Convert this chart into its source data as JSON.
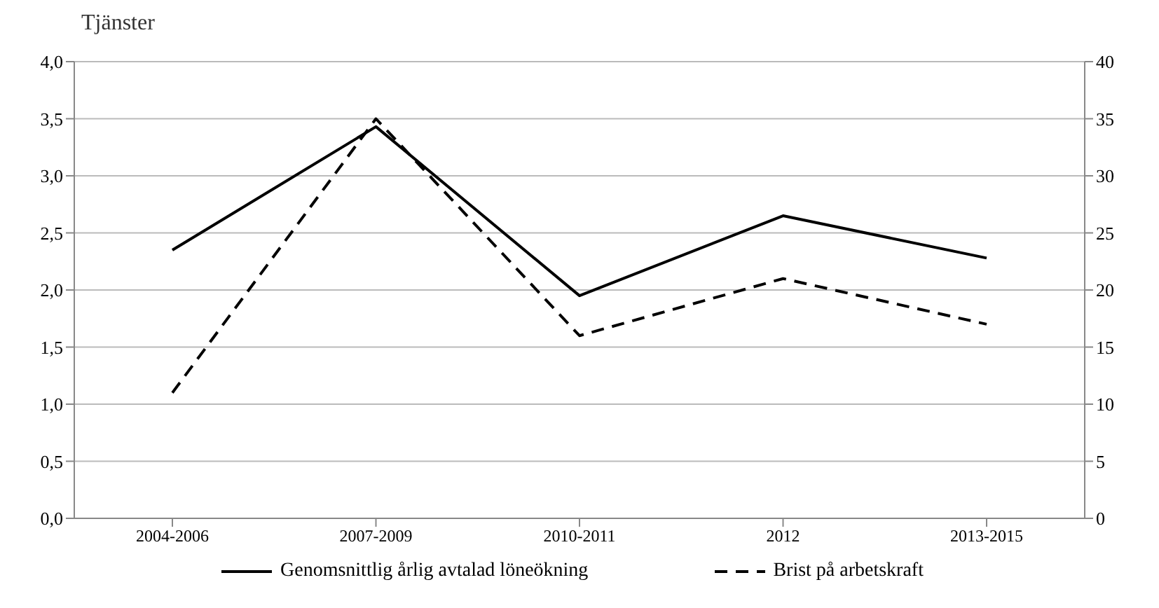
{
  "chart_data": {
    "type": "line",
    "title": "Tjänster",
    "categories": [
      "2004-2006",
      "2007-2009",
      "2010-2011",
      "2012",
      "2013-2015"
    ],
    "series": [
      {
        "name": "Genomsnittlig årlig avtalad löneökning",
        "color": "#000000",
        "line_style": "solid",
        "values": [
          2.35,
          3.43,
          1.95,
          2.65,
          2.28
        ]
      },
      {
        "name": "Brist på arbetskraft",
        "color": "#000000",
        "line_style": "dashed",
        "axis": "y2",
        "values": [
          11,
          35,
          16,
          21,
          17
        ]
      }
    ],
    "ylim": [
      0,
      4
    ],
    "yticks": [
      {
        "value": 0,
        "label": "0,0"
      },
      {
        "value": 0.5,
        "label": "0,5"
      },
      {
        "value": 1,
        "label": "1,0"
      },
      {
        "value": 1.5,
        "label": "1,5"
      },
      {
        "value": 2,
        "label": "2,0"
      },
      {
        "value": 2.5,
        "label": "2,5"
      },
      {
        "value": 3,
        "label": "3,0"
      },
      {
        "value": 3.5,
        "label": "3,5"
      },
      {
        "value": 4,
        "label": "4,0"
      }
    ],
    "y2lim": [
      0,
      40
    ],
    "y2ticks": [
      0,
      5,
      10,
      15,
      20,
      25,
      30,
      35,
      40
    ],
    "grid": "y",
    "legend": "bottom",
    "marker": "none"
  }
}
